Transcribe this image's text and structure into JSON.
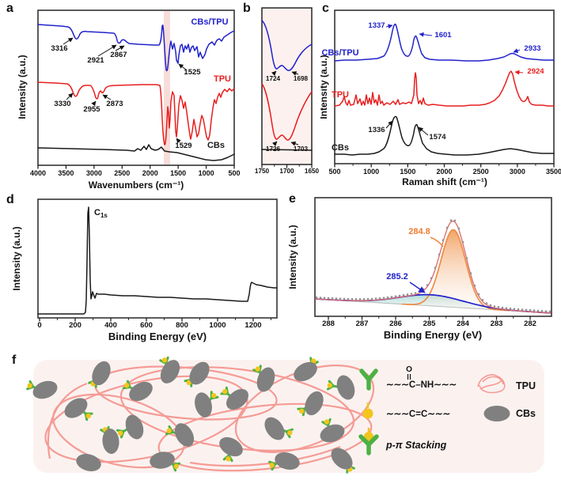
{
  "panels": {
    "a": {
      "letter": "a",
      "ylabel": "Intensity (a.u.)",
      "xlabel": "Wavenumbers (cm⁻¹)",
      "xticks": [
        "4000",
        "3500",
        "3000",
        "2500",
        "2000",
        "1500",
        "1000",
        "500"
      ],
      "curve_labels": {
        "cbstpu": "CBs/TPU",
        "tpu": "TPU",
        "cbs": "CBs"
      },
      "peaks": {
        "p3316": "3316",
        "p2921": "2921",
        "p2867": "2867",
        "p1525": "1525",
        "p3330": "3330",
        "p2955": "2955",
        "p2873": "2873",
        "p1529": "1529"
      }
    },
    "b": {
      "letter": "b",
      "xticks": [
        "1750",
        "1700",
        "1650"
      ],
      "peaks": {
        "p1724": "1724",
        "p1698": "1698",
        "p1726": "1726",
        "p1703": "1703"
      }
    },
    "c": {
      "letter": "c",
      "ylabel": "Intensity (a.u.)",
      "xlabel": "Raman shift (cm⁻¹)",
      "xticks": [
        "500",
        "1000",
        "1500",
        "2000",
        "2500",
        "3000",
        "3500"
      ],
      "curve_labels": {
        "cbstpu": "CBs/TPU",
        "tpu": "TPU",
        "cbs": "CBs"
      },
      "peaks": {
        "p1337": "1337",
        "p1601": "1601",
        "p2933": "2933",
        "p2924": "2924",
        "p1336": "1336",
        "p1574": "1574"
      }
    },
    "d": {
      "letter": "d",
      "ylabel": "Intensity (a.u.)",
      "xlabel": "Binding Energy (eV)",
      "xticks": [
        "0",
        "200",
        "400",
        "600",
        "800",
        "1000",
        "1200"
      ],
      "peak_main": "C",
      "peak_sub": "1s"
    },
    "e": {
      "letter": "e",
      "ylabel": "Intensity (a.u.)",
      "xlabel": "Binding Energy (eV)",
      "xticks": [
        "288",
        "287",
        "286",
        "285",
        "284",
        "283",
        "282"
      ],
      "peaks": {
        "orange": "284.8",
        "blue": "285.2"
      }
    },
    "f": {
      "letter": "f",
      "legend": {
        "squiggle": "∼∼∼",
        "amide_o": "O",
        "amide_text": "C–NH",
        "cc_text": "C=C",
        "ppi_text": "p-π Stacking",
        "tpu_text": "TPU",
        "cbs_text": "CBs"
      }
    }
  },
  "colors": {
    "blue": "#2222cc",
    "red": "#e81e1e",
    "orange": "#ed8c45",
    "orange_label": "#ed7d31",
    "teal": "#3fa8a2",
    "pink_band": "#f6d3d0",
    "panel_b_bg": "#fdf1ef",
    "loop_pink": "#f59b95",
    "cb_grey": "#808080",
    "green": "#4db143",
    "yellow": "#f2c51d",
    "f_bg": "#fbf2f0",
    "fit_red": "#d96a6a",
    "dot_grey": "#929292"
  }
}
